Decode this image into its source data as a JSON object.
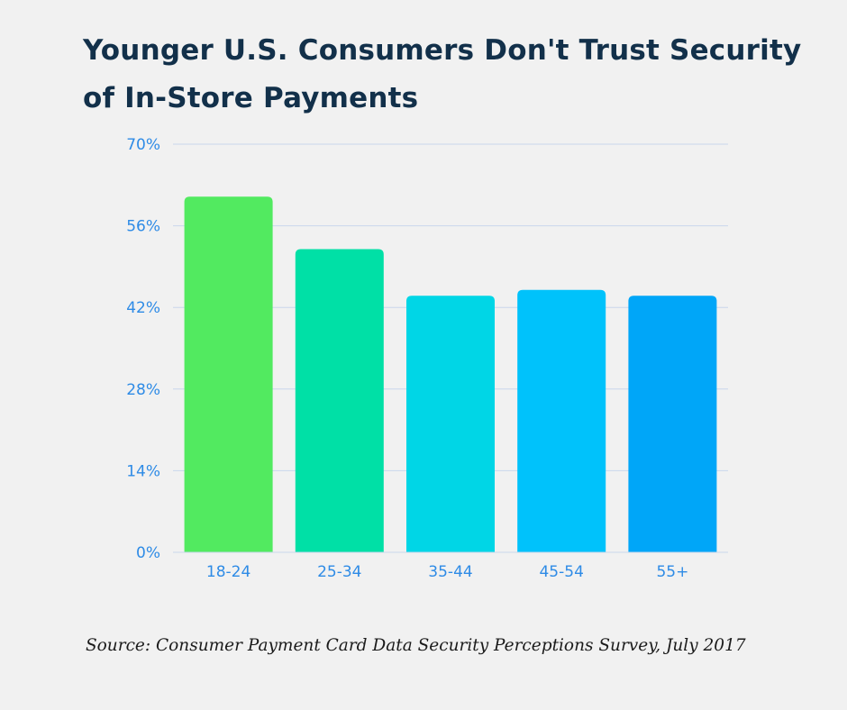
{
  "title": {
    "line1": "Younger U.S. Consumers Don't Trust Security",
    "line2": "of In-Store Payments"
  },
  "chart_data": {
    "type": "bar",
    "categories": [
      "18-24",
      "25-34",
      "35-44",
      "45-54",
      "55+"
    ],
    "values": [
      61,
      52,
      44,
      45,
      44
    ],
    "unit": "%",
    "ylim": [
      0,
      70
    ],
    "yticks": [
      0,
      14,
      28,
      42,
      56,
      70
    ],
    "ytick_labels": [
      "0%",
      "14%",
      "28%",
      "42%",
      "56%",
      "70%"
    ],
    "grid": true,
    "xlabel": "",
    "ylabel": "",
    "bar_colors": [
      "#52ea60",
      "#00e0a6",
      "#00d6e6",
      "#00c2fb",
      "#00a6f8"
    ],
    "axis_label_color": "#2e8be6",
    "grid_color": "#c9d6ec"
  },
  "source": "Source: Consumer Payment Card Data Security Perceptions Survey, July 2017"
}
